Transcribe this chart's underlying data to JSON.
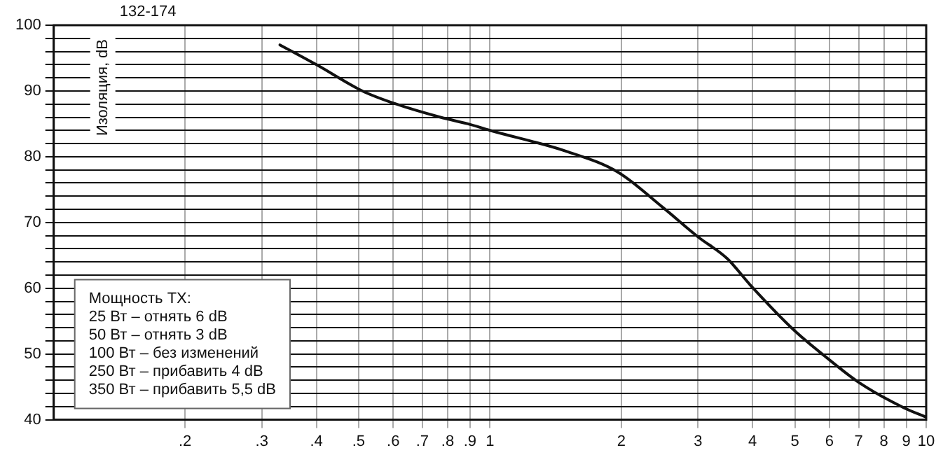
{
  "chart_data": {
    "type": "line",
    "title": "132-174",
    "ylabel": "Изоляция, dB",
    "log": "x",
    "grid": true,
    "marker": "none",
    "line_style": "solid",
    "legend": false,
    "xlim": [
      0.1,
      10
    ],
    "xticks": [
      {
        "value": 0.2,
        "label": ".2"
      },
      {
        "value": 0.3,
        "label": ".3"
      },
      {
        "value": 0.4,
        "label": ".4"
      },
      {
        "value": 0.5,
        "label": ".5"
      },
      {
        "value": 0.6,
        "label": ".6"
      },
      {
        "value": 0.7,
        "label": ".7"
      },
      {
        "value": 0.8,
        "label": ".8"
      },
      {
        "value": 0.9,
        "label": ".9"
      },
      1,
      2,
      3,
      4,
      5,
      6,
      7,
      8,
      9,
      10
    ],
    "ylim": [
      40,
      100
    ],
    "yticks": [
      40,
      {
        "value": 42,
        "label": null
      },
      {
        "value": 44,
        "label": null
      },
      {
        "value": 46,
        "label": null
      },
      {
        "value": 48,
        "label": null
      },
      50,
      {
        "value": 52,
        "label": null
      },
      {
        "value": 54,
        "label": null
      },
      {
        "value": 56,
        "label": null
      },
      {
        "value": 58,
        "label": null
      },
      60,
      {
        "value": 62,
        "label": null
      },
      {
        "value": 64,
        "label": null
      },
      {
        "value": 66,
        "label": null
      },
      {
        "value": 68,
        "label": null
      },
      70,
      {
        "value": 72,
        "label": null
      },
      {
        "value": 74,
        "label": null
      },
      {
        "value": 76,
        "label": null
      },
      {
        "value": 78,
        "label": null
      },
      80,
      {
        "value": 82,
        "label": null
      },
      {
        "value": 84,
        "label": null
      },
      {
        "value": 86,
        "label": null
      },
      {
        "value": 88,
        "label": null
      },
      90,
      {
        "value": 92,
        "label": null
      },
      {
        "value": 94,
        "label": null
      },
      {
        "value": 96,
        "label": null
      },
      {
        "value": 98,
        "label": null
      },
      100
    ],
    "x": [
      0.33,
      0.4,
      0.51,
      0.61,
      0.77,
      0.89,
      1,
      1.5,
      1.96,
      2.5,
      3,
      3.5,
      3.95,
      5,
      5.9,
      7,
      8.9,
      10
    ],
    "series": [
      {
        "color": "#111111",
        "values": [
          97,
          94,
          90,
          88,
          86,
          85,
          84,
          80.8,
          77.7,
          72.2,
          67.8,
          64.5,
          60.5,
          53.5,
          49.5,
          45.7,
          41.8,
          40.4
        ]
      }
    ],
    "annotations": [
      "Мощность ТХ:",
      "25 Вт – отнять 6 dB",
      "50 Вт – отнять 3 dB",
      "100 Вт – без изменений",
      "250 Вт – прибавить 4 dB",
      "350 Вт – прибавить 5,5 dB"
    ]
  }
}
